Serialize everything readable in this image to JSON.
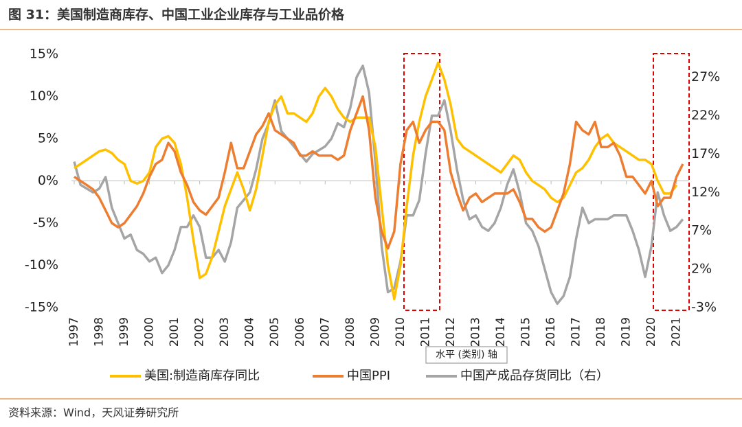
{
  "chart_data": {
    "type": "line",
    "title": "图 31：美国制造商库存、中国工业企业库存与工业品价格",
    "source": "资料来源：Wind，天风证券研究所",
    "annotation": "水平 (类别) 轴",
    "x": [
      1997,
      1997.25,
      1997.5,
      1997.75,
      1998,
      1998.25,
      1998.5,
      1998.75,
      1999,
      1999.25,
      1999.5,
      1999.75,
      2000,
      2000.25,
      2000.5,
      2000.75,
      2001,
      2001.25,
      2001.5,
      2001.75,
      2002,
      2002.25,
      2002.5,
      2002.75,
      2003,
      2003.25,
      2003.5,
      2003.75,
      2004,
      2004.25,
      2004.5,
      2004.75,
      2005,
      2005.25,
      2005.5,
      2005.75,
      2006,
      2006.25,
      2006.5,
      2006.75,
      2007,
      2007.25,
      2007.5,
      2007.75,
      2008,
      2008.25,
      2008.5,
      2008.75,
      2009,
      2009.25,
      2009.5,
      2009.75,
      2010,
      2010.25,
      2010.5,
      2010.75,
      2011,
      2011.25,
      2011.5,
      2011.75,
      2012,
      2012.25,
      2012.5,
      2012.75,
      2013,
      2013.25,
      2013.5,
      2013.75,
      2014,
      2014.25,
      2014.5,
      2014.75,
      2015,
      2015.25,
      2015.5,
      2015.75,
      2016,
      2016.25,
      2016.5,
      2016.75,
      2017,
      2017.25,
      2017.5,
      2017.75,
      2018,
      2018.25,
      2018.5,
      2018.75,
      2019,
      2019.25,
      2019.5,
      2019.75,
      2020,
      2020.25,
      2020.5,
      2020.75,
      2021,
      2021.25
    ],
    "xlim": [
      1997,
      2021.5
    ],
    "xticks": [
      1997,
      1998,
      1999,
      2000,
      2001,
      2002,
      2003,
      2004,
      2005,
      2006,
      2007,
      2008,
      2009,
      2010,
      2011,
      2012,
      2013,
      2014,
      2015,
      2016,
      2017,
      2018,
      2019,
      2020,
      2021
    ],
    "ylim": [
      -15,
      15
    ],
    "yticks": [
      {
        "value": -15,
        "label": "-15%"
      },
      {
        "value": -10,
        "label": "-10%"
      },
      {
        "value": -5,
        "label": "-5%"
      },
      {
        "value": 0,
        "label": "0%"
      },
      {
        "value": 5,
        "label": "5%"
      },
      {
        "value": 10,
        "label": "10%"
      },
      {
        "value": 15,
        "label": "15%"
      }
    ],
    "y2lim": [
      -3,
      30
    ],
    "y2ticks": [
      {
        "value": -3,
        "label": "-3%"
      },
      {
        "value": 2,
        "label": "2%"
      },
      {
        "value": 7,
        "label": "7%"
      },
      {
        "value": 12,
        "label": "12%"
      },
      {
        "value": 17,
        "label": "17%"
      },
      {
        "value": 22,
        "label": "22%"
      },
      {
        "value": 27,
        "label": "27%"
      }
    ],
    "series": [
      {
        "name": "美国:制造商库存同比",
        "color": "#ffc000",
        "values": [
          1.5,
          2,
          2.5,
          3,
          3.5,
          3.7,
          3.3,
          2.5,
          2,
          0,
          -0.3,
          0,
          1,
          4,
          5,
          5.3,
          4.5,
          2,
          -2,
          -7,
          -11.5,
          -11,
          -9,
          -6,
          -3,
          -1,
          1,
          -1,
          -3.5,
          -1,
          3,
          7,
          9,
          10,
          8,
          8,
          7.5,
          7,
          8,
          10,
          11,
          10,
          8.5,
          7.5,
          7,
          7.5,
          7.5,
          7.5,
          4,
          -3,
          -10,
          -14,
          -10,
          -3,
          3,
          7,
          10,
          12,
          14,
          12,
          9,
          5,
          4,
          3.5,
          3,
          2.5,
          2,
          1.5,
          1,
          2,
          3,
          2.5,
          1,
          0,
          -0.5,
          -1,
          -2,
          -2.5,
          -2,
          -0.5,
          1,
          1.5,
          2.5,
          4,
          5,
          5.5,
          4.5,
          4,
          3.5,
          3,
          2.5,
          2.5,
          2,
          0,
          -1.5,
          -1.5,
          -0.5,
          null
        ]
      },
      {
        "name": "中国PPI",
        "color": "#ed7d31",
        "values": [
          0.5,
          0,
          -0.5,
          -1,
          -2,
          -3.5,
          -5,
          -5.5,
          -5,
          -4,
          -3,
          -1.5,
          0.5,
          2,
          2.5,
          4.5,
          3.5,
          1,
          -0.5,
          -2.5,
          -3.5,
          -4,
          -3,
          -2,
          1,
          4.5,
          1.5,
          1.5,
          3.5,
          5.5,
          6.5,
          8,
          6,
          5.5,
          5,
          4.5,
          3,
          3,
          3.5,
          3,
          3,
          3,
          2.5,
          3,
          6,
          8,
          10,
          6,
          -2,
          -6,
          -8,
          -6,
          2,
          6,
          7,
          4.5,
          6,
          7,
          7,
          6,
          1,
          -1.5,
          -3.5,
          -2,
          -1.5,
          -2.5,
          -2,
          -1.5,
          -1.5,
          -1.5,
          -1,
          -2.5,
          -4.5,
          -4.5,
          -5.5,
          -6,
          -5.5,
          -3.5,
          -1.5,
          2,
          7,
          6,
          5.5,
          7,
          4,
          4,
          4.5,
          3,
          0.5,
          0.5,
          -0.5,
          -1.5,
          0,
          -3,
          -2,
          -2,
          0.5,
          2
        ]
      },
      {
        "name": "中国产成品存货同比（右）",
        "color": "#a5a5a5",
        "axis": "y2",
        "values": [
          16,
          13,
          12.5,
          12,
          12.5,
          14,
          10,
          8,
          6,
          6.5,
          4.5,
          4,
          3,
          3.5,
          1.5,
          2.5,
          4.5,
          7.5,
          7.5,
          9,
          7.5,
          3.5,
          3.5,
          4.5,
          3,
          5.5,
          10,
          11,
          12,
          15,
          19,
          21,
          24,
          20,
          19,
          18,
          17,
          16,
          17,
          17.5,
          18,
          19,
          21,
          20.5,
          23,
          27,
          28.5,
          25,
          16,
          5,
          -1,
          -0.5,
          3,
          9,
          9,
          11,
          17,
          22,
          22,
          24,
          20,
          15,
          11,
          8.5,
          9,
          7.5,
          7,
          8,
          10,
          13,
          15,
          12,
          8,
          7,
          5,
          2,
          -1,
          -2.5,
          -1.5,
          1,
          6,
          10,
          8,
          8.5,
          8.5,
          8.5,
          9,
          9,
          9,
          7,
          4.5,
          1,
          5,
          12,
          9,
          7,
          7.5,
          8.5
        ]
      }
    ]
  }
}
